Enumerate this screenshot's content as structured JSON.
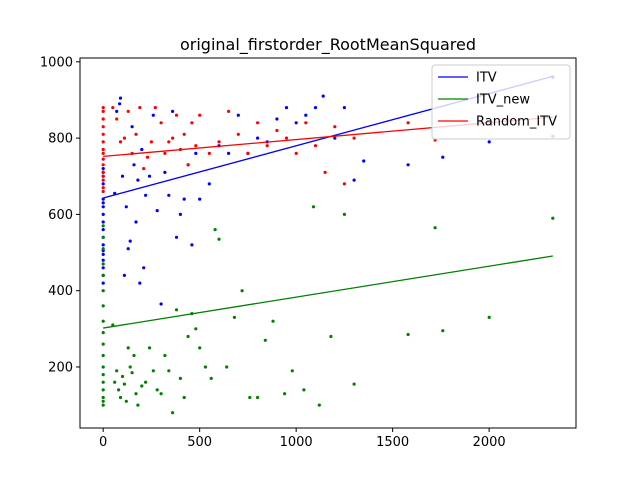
{
  "chart_data": {
    "type": "scatter",
    "title": "original_firstorder_RootMeanSquared",
    "xlabel": "",
    "ylabel": "",
    "xlim": [
      -120,
      2450
    ],
    "ylim": [
      40,
      1010
    ],
    "xticks": [
      0,
      500,
      1000,
      1500,
      2000
    ],
    "yticks": [
      200,
      400,
      600,
      800,
      1000
    ],
    "grid": false,
    "legend_position": "top-right",
    "series": [
      {
        "name": "ITV",
        "color": "#0000ff",
        "fit_line": [
          [
            0,
            643
          ],
          [
            2330,
            962
          ]
        ],
        "points": [
          [
            0,
            640
          ],
          [
            0,
            630
          ],
          [
            0,
            620
          ],
          [
            0,
            600
          ],
          [
            0,
            580
          ],
          [
            0,
            560
          ],
          [
            0,
            540
          ],
          [
            0,
            520
          ],
          [
            0,
            505
          ],
          [
            0,
            495
          ],
          [
            0,
            480
          ],
          [
            0,
            460
          ],
          [
            0,
            440
          ],
          [
            0,
            420
          ],
          [
            0,
            700
          ],
          [
            0,
            710
          ],
          [
            0,
            720
          ],
          [
            0,
            680
          ],
          [
            60,
            655
          ],
          [
            70,
            870
          ],
          [
            85,
            890
          ],
          [
            90,
            905
          ],
          [
            100,
            700
          ],
          [
            110,
            440
          ],
          [
            120,
            620
          ],
          [
            130,
            510
          ],
          [
            140,
            530
          ],
          [
            150,
            830
          ],
          [
            160,
            730
          ],
          [
            170,
            580
          ],
          [
            180,
            690
          ],
          [
            190,
            420
          ],
          [
            200,
            770
          ],
          [
            210,
            460
          ],
          [
            220,
            650
          ],
          [
            240,
            700
          ],
          [
            260,
            860
          ],
          [
            280,
            610
          ],
          [
            300,
            365
          ],
          [
            320,
            710
          ],
          [
            340,
            650
          ],
          [
            360,
            870
          ],
          [
            380,
            540
          ],
          [
            400,
            600
          ],
          [
            420,
            640
          ],
          [
            440,
            730
          ],
          [
            460,
            520
          ],
          [
            480,
            760
          ],
          [
            500,
            640
          ],
          [
            550,
            680
          ],
          [
            600,
            780
          ],
          [
            650,
            760
          ],
          [
            700,
            860
          ],
          [
            750,
            760
          ],
          [
            800,
            800
          ],
          [
            850,
            790
          ],
          [
            900,
            850
          ],
          [
            950,
            880
          ],
          [
            1000,
            840
          ],
          [
            1050,
            860
          ],
          [
            1100,
            880
          ],
          [
            1140,
            910
          ],
          [
            1200,
            800
          ],
          [
            1250,
            880
          ],
          [
            1300,
            690
          ],
          [
            1350,
            740
          ],
          [
            1580,
            730
          ],
          [
            1760,
            750
          ],
          [
            2000,
            790
          ],
          [
            2330,
            960
          ]
        ]
      },
      {
        "name": "ITV_new",
        "color": "#008000",
        "fit_line": [
          [
            0,
            302
          ],
          [
            2330,
            491
          ]
        ],
        "points": [
          [
            0,
            100
          ],
          [
            0,
            110
          ],
          [
            0,
            120
          ],
          [
            0,
            140
          ],
          [
            0,
            160
          ],
          [
            0,
            180
          ],
          [
            0,
            200
          ],
          [
            0,
            230
          ],
          [
            0,
            260
          ],
          [
            0,
            290
          ],
          [
            0,
            320
          ],
          [
            0,
            360
          ],
          [
            0,
            400
          ],
          [
            0,
            440
          ],
          [
            0,
            470
          ],
          [
            0,
            510
          ],
          [
            0,
            540
          ],
          [
            0,
            570
          ],
          [
            50,
            310
          ],
          [
            60,
            160
          ],
          [
            70,
            190
          ],
          [
            80,
            140
          ],
          [
            90,
            120
          ],
          [
            100,
            175
          ],
          [
            110,
            155
          ],
          [
            120,
            110
          ],
          [
            130,
            250
          ],
          [
            140,
            200
          ],
          [
            150,
            185
          ],
          [
            160,
            230
          ],
          [
            170,
            130
          ],
          [
            180,
            100
          ],
          [
            200,
            150
          ],
          [
            220,
            160
          ],
          [
            240,
            250
          ],
          [
            260,
            190
          ],
          [
            280,
            140
          ],
          [
            300,
            130
          ],
          [
            320,
            230
          ],
          [
            340,
            190
          ],
          [
            360,
            80
          ],
          [
            380,
            350
          ],
          [
            400,
            170
          ],
          [
            420,
            120
          ],
          [
            440,
            280
          ],
          [
            460,
            340
          ],
          [
            480,
            300
          ],
          [
            500,
            250
          ],
          [
            530,
            200
          ],
          [
            560,
            170
          ],
          [
            580,
            560
          ],
          [
            600,
            535
          ],
          [
            640,
            200
          ],
          [
            680,
            330
          ],
          [
            720,
            400
          ],
          [
            760,
            120
          ],
          [
            800,
            120
          ],
          [
            840,
            270
          ],
          [
            880,
            320
          ],
          [
            940,
            130
          ],
          [
            980,
            190
          ],
          [
            1040,
            140
          ],
          [
            1090,
            620
          ],
          [
            1120,
            100
          ],
          [
            1180,
            280
          ],
          [
            1250,
            600
          ],
          [
            1300,
            155
          ],
          [
            1580,
            285
          ],
          [
            1720,
            565
          ],
          [
            1760,
            295
          ],
          [
            2000,
            330
          ],
          [
            2330,
            590
          ]
        ]
      },
      {
        "name": "Random_ITV",
        "color": "#ff0000",
        "fit_line": [
          [
            0,
            752
          ],
          [
            2330,
            855
          ]
        ],
        "points": [
          [
            0,
            880
          ],
          [
            0,
            870
          ],
          [
            0,
            850
          ],
          [
            0,
            830
          ],
          [
            0,
            810
          ],
          [
            0,
            790
          ],
          [
            0,
            770
          ],
          [
            0,
            760
          ],
          [
            0,
            745
          ],
          [
            0,
            730
          ],
          [
            0,
            710
          ],
          [
            0,
            700
          ],
          [
            0,
            690
          ],
          [
            0,
            670
          ],
          [
            0,
            660
          ],
          [
            50,
            880
          ],
          [
            70,
            850
          ],
          [
            90,
            790
          ],
          [
            110,
            800
          ],
          [
            130,
            870
          ],
          [
            150,
            760
          ],
          [
            170,
            810
          ],
          [
            190,
            880
          ],
          [
            210,
            720
          ],
          [
            230,
            750
          ],
          [
            250,
            790
          ],
          [
            270,
            880
          ],
          [
            300,
            840
          ],
          [
            320,
            760
          ],
          [
            340,
            790
          ],
          [
            360,
            800
          ],
          [
            380,
            860
          ],
          [
            400,
            770
          ],
          [
            420,
            810
          ],
          [
            440,
            730
          ],
          [
            460,
            840
          ],
          [
            480,
            780
          ],
          [
            500,
            860
          ],
          [
            550,
            760
          ],
          [
            600,
            790
          ],
          [
            650,
            870
          ],
          [
            700,
            810
          ],
          [
            750,
            760
          ],
          [
            800,
            840
          ],
          [
            850,
            780
          ],
          [
            900,
            820
          ],
          [
            950,
            800
          ],
          [
            1000,
            760
          ],
          [
            1050,
            840
          ],
          [
            1100,
            780
          ],
          [
            1150,
            710
          ],
          [
            1200,
            830
          ],
          [
            1250,
            680
          ],
          [
            1300,
            800
          ],
          [
            1580,
            840
          ],
          [
            1720,
            795
          ],
          [
            2330,
            805
          ]
        ]
      }
    ]
  }
}
